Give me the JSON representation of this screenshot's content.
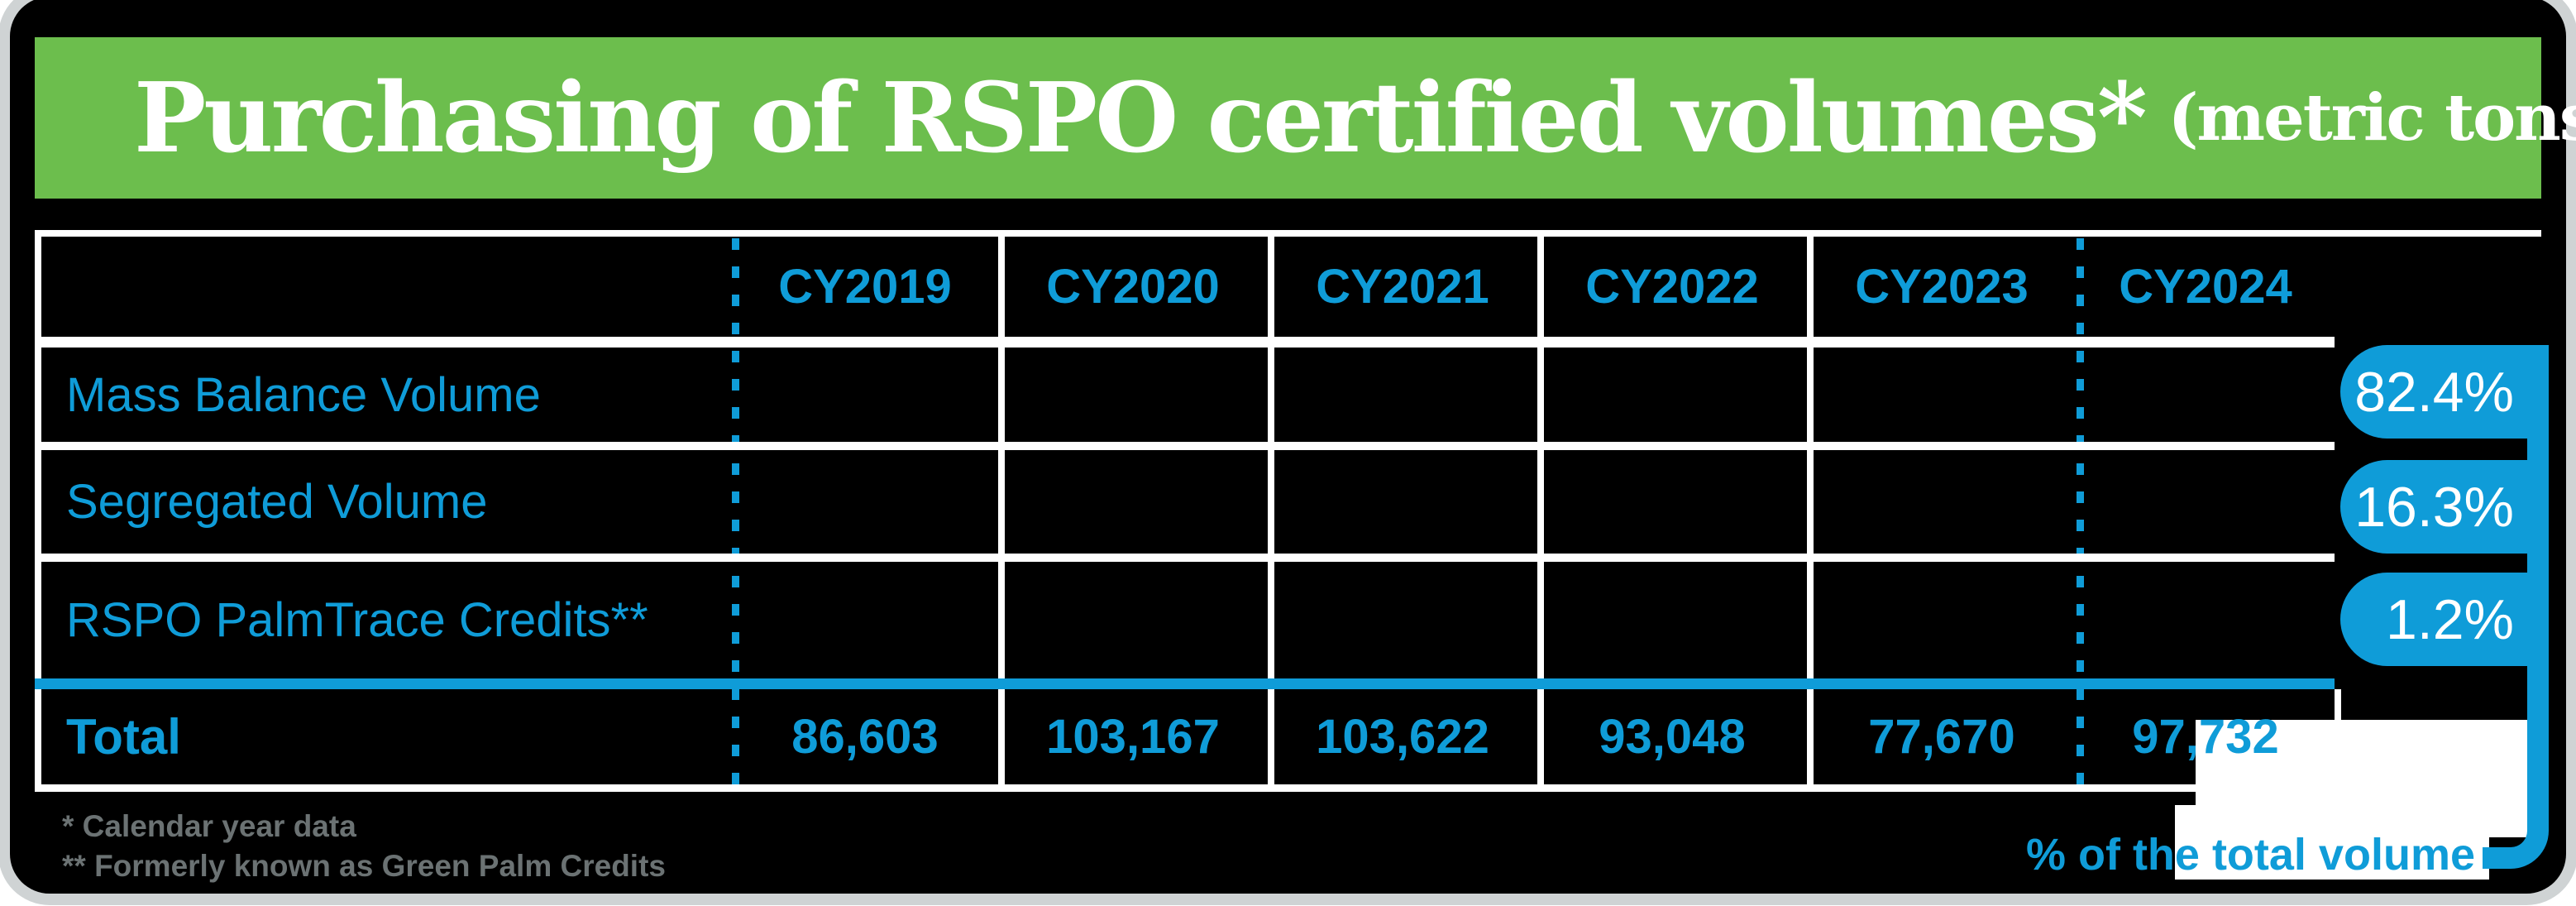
{
  "title": {
    "main": "Purchasing of RSPO certified volumes*",
    "unit": "(metric tons)"
  },
  "table": {
    "columns": [
      "CY2019",
      "CY2020",
      "CY2021",
      "CY2022",
      "CY2023",
      "CY2024"
    ],
    "rows": [
      {
        "label": "Mass Balance Volume"
      },
      {
        "label": "Segregated Volume"
      },
      {
        "label": "RSPO PalmTrace Credits**"
      }
    ],
    "total": {
      "label": "Total",
      "values": [
        "86,603",
        "103,167",
        "103,622",
        "93,048",
        "77,670",
        "97,732"
      ]
    }
  },
  "badges": {
    "values": [
      "82.4%",
      "16.3%",
      "1.2%"
    ],
    "callout": "% of the total volume"
  },
  "footnotes": [
    "* Calendar year data",
    "** Formerly known as Green Palm Credits"
  ],
  "colors": {
    "banner_green": "#6cbe4d",
    "accent_blue": "#0f9cd8",
    "footnote_gray": "#6b7273",
    "frame_gray": "#cfd3d4",
    "background": "#000000",
    "text_on_banner": "#ffffff"
  },
  "chart_data": {
    "type": "table",
    "title": "Purchasing of RSPO certified volumes* (metric tons)",
    "columns": [
      "CY2019",
      "CY2020",
      "CY2021",
      "CY2022",
      "CY2023",
      "CY2024"
    ],
    "rows": [
      {
        "label": "Mass Balance Volume",
        "values": [
          null,
          null,
          null,
          null,
          null,
          null
        ],
        "pct_of_total_volume": 82.4
      },
      {
        "label": "Segregated Volume",
        "values": [
          null,
          null,
          null,
          null,
          null,
          null
        ],
        "pct_of_total_volume": 16.3
      },
      {
        "label": "RSPO PalmTrace Credits**",
        "values": [
          null,
          null,
          null,
          null,
          null,
          null
        ],
        "pct_of_total_volume": 1.2
      },
      {
        "label": "Total",
        "values": [
          86603,
          103167,
          103622,
          93048,
          77670,
          97732
        ]
      }
    ],
    "annotations": [
      "% of the total volume"
    ],
    "notes": [
      "* Calendar year data",
      "** Formerly known as Green Palm Credits"
    ]
  }
}
